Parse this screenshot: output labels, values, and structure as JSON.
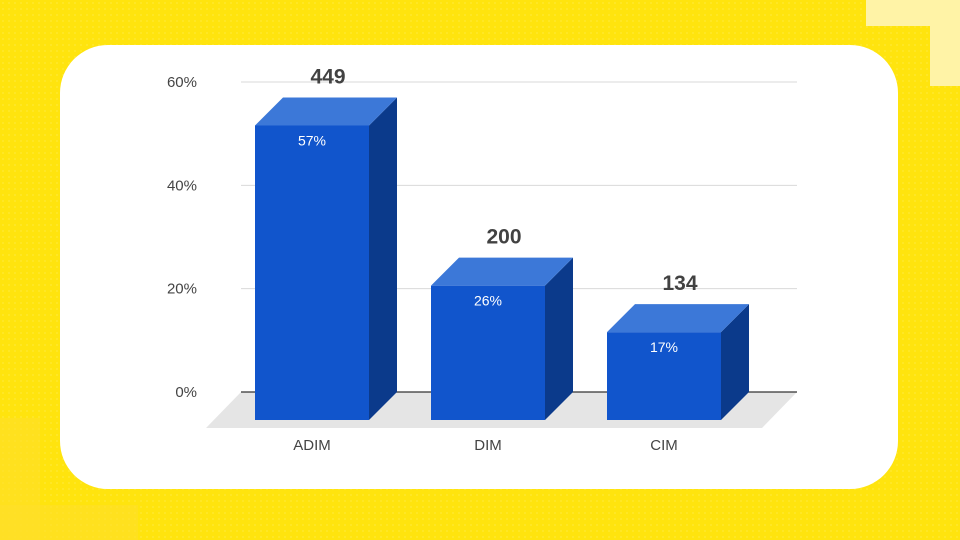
{
  "chart_data": {
    "type": "bar",
    "categories": [
      "ADIM",
      "DIM",
      "CIM"
    ],
    "series": [
      {
        "values": [
          57,
          26,
          17
        ],
        "inner_labels": [
          "57%",
          "26%",
          "17%"
        ],
        "top_labels": [
          "449",
          "200",
          "134"
        ]
      }
    ],
    "yaxis": {
      "ticks": [
        0,
        20,
        40,
        60
      ],
      "tick_labels": [
        "0%",
        "20%",
        "40%",
        "60%"
      ],
      "ylim": [
        0,
        60
      ]
    },
    "title": "",
    "xlabel": "",
    "ylabel": "",
    "grid": true,
    "colors": {
      "bar_front": "#1155CC",
      "bar_top": "#3C78D8",
      "bar_side": "#0B3A8B",
      "floor": "#E5E5E5",
      "grid": "#D9D9D9",
      "axis": "#333333",
      "tick_text": "#444444",
      "top_label": "#424242",
      "inner_label": "#FFFFFF"
    }
  }
}
